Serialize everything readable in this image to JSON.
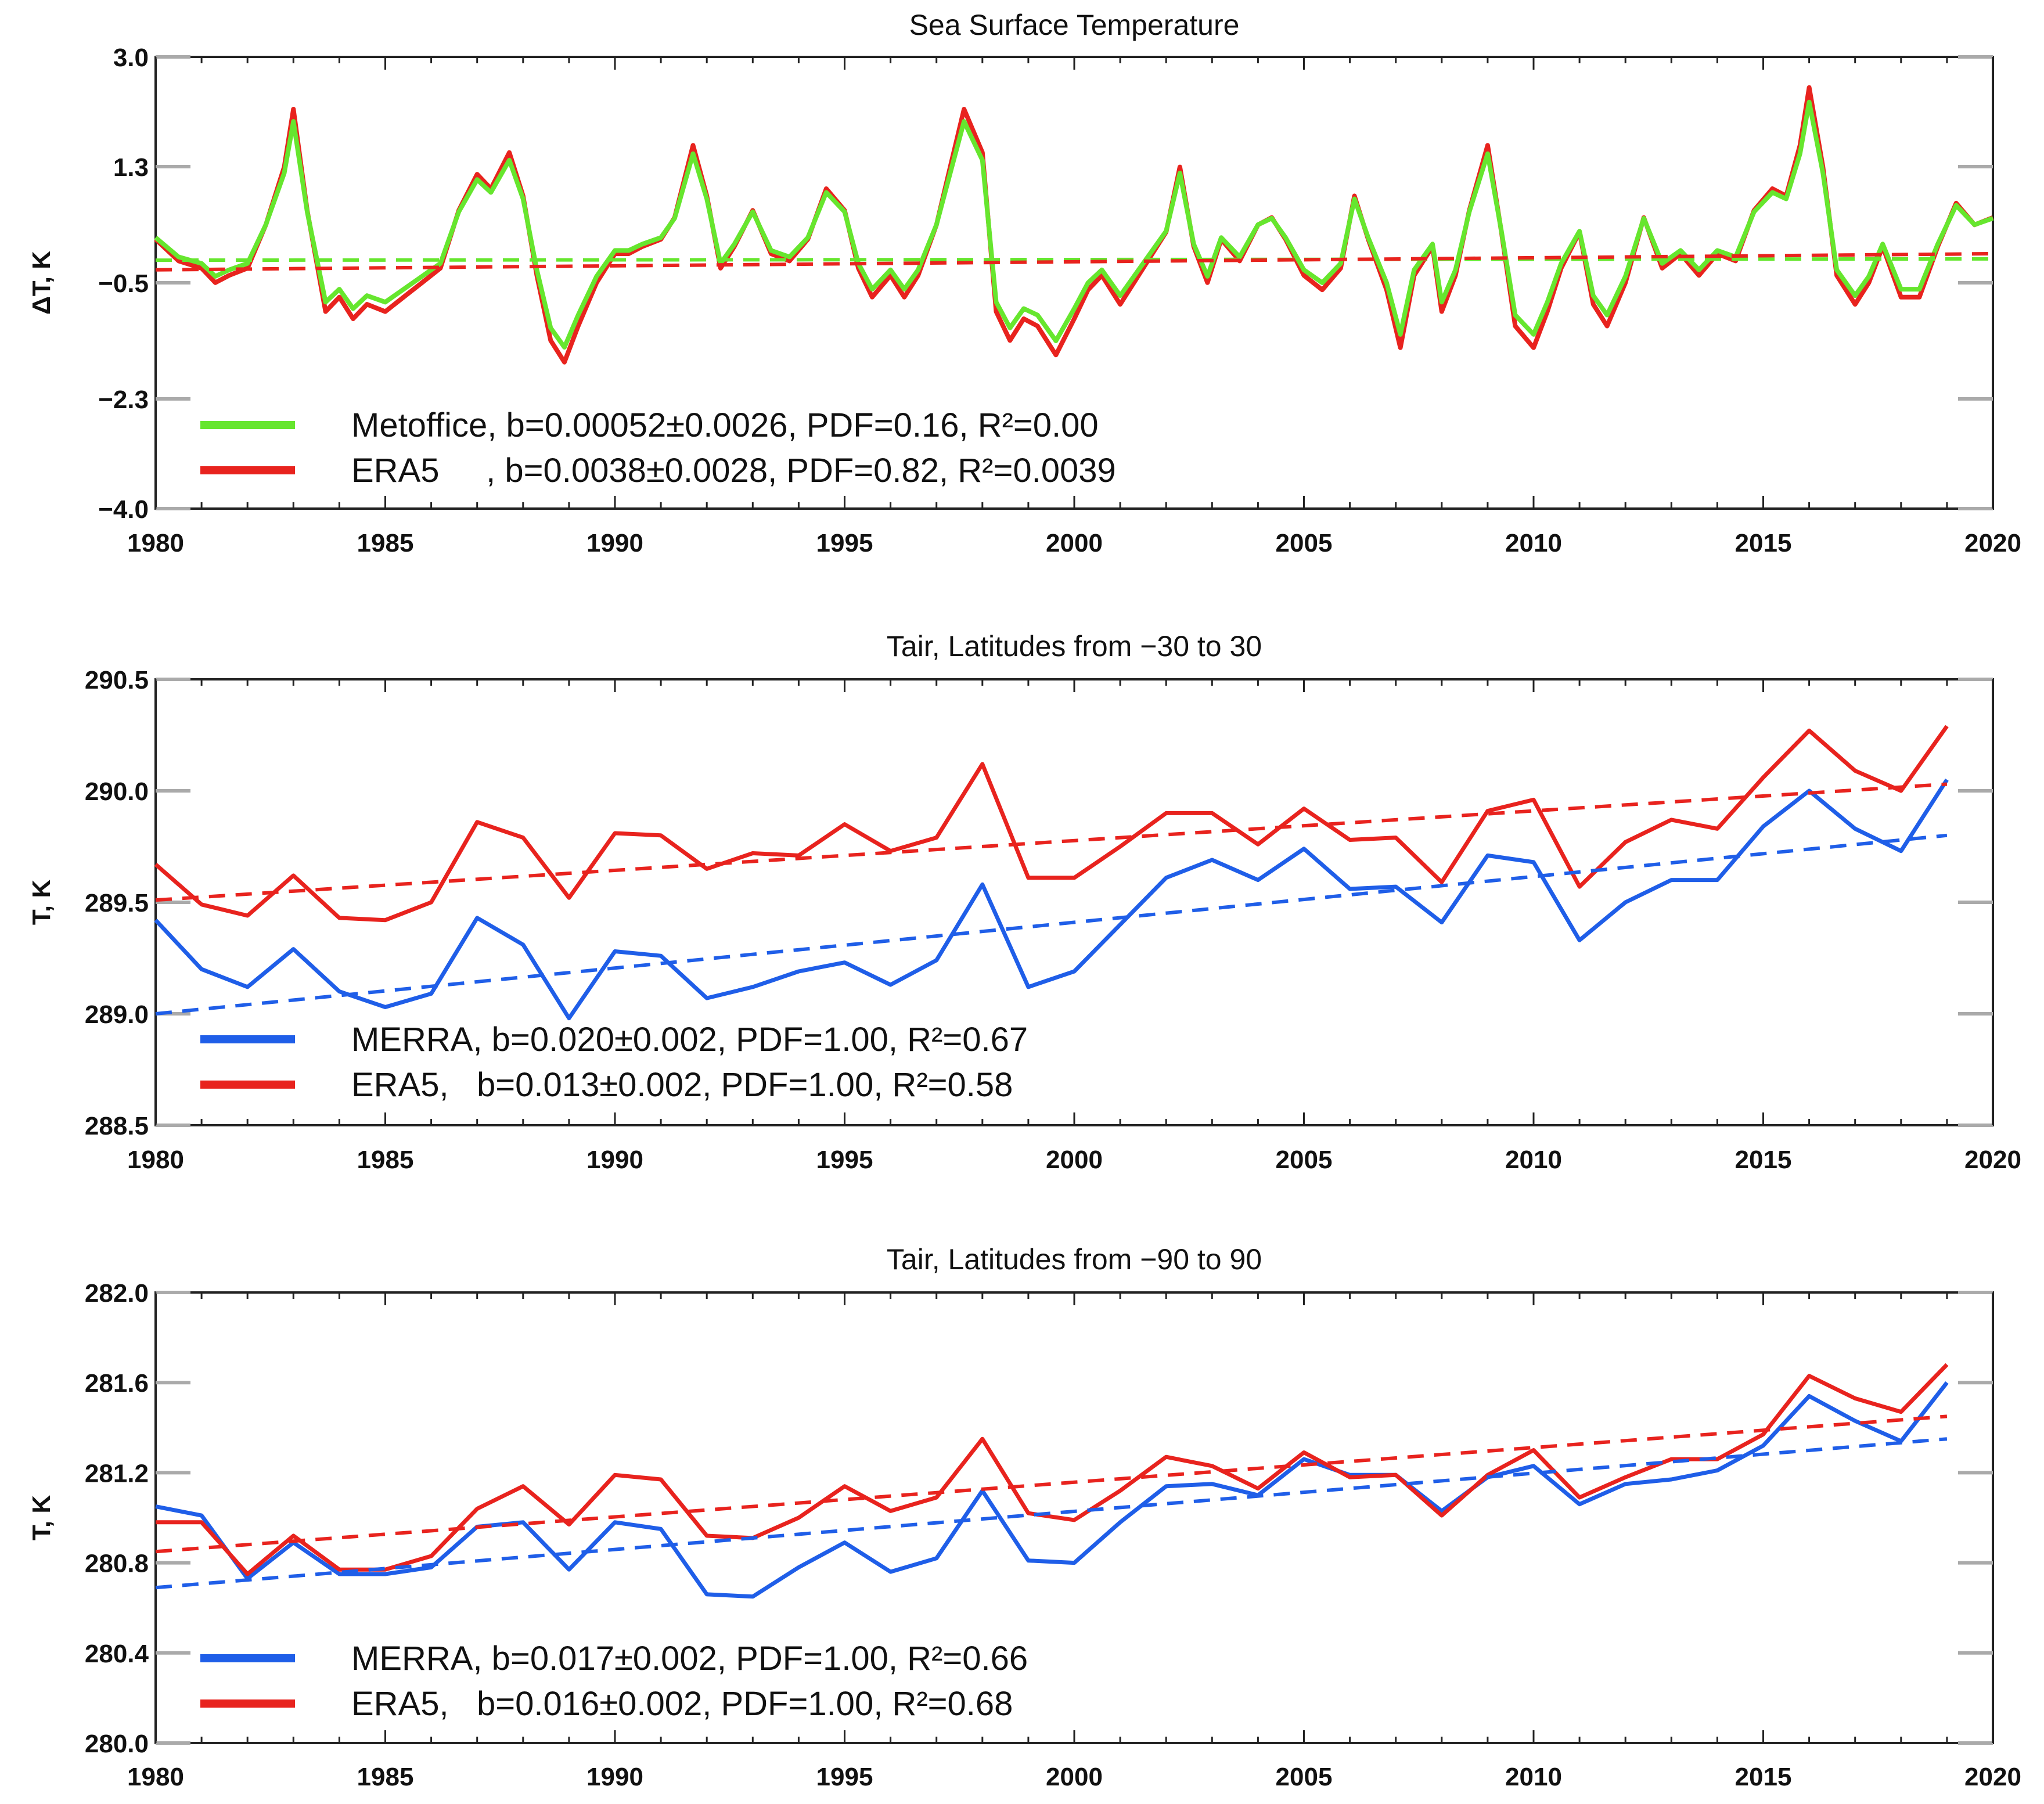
{
  "chart_data": [
    {
      "type": "line",
      "title": "Sea Surface Temperature",
      "xlabel": "",
      "ylabel": "ΔT, K",
      "xlim": [
        1980,
        2020
      ],
      "ylim": [
        -4.0,
        3.0
      ],
      "yticks": [
        3.0,
        1.3,
        -0.5,
        -2.3,
        -4.0
      ],
      "ytick_labels": [
        "3.0",
        "1.3",
        "−0.5",
        "−2.3",
        "−4.0"
      ],
      "xticks": [
        1980,
        1985,
        1990,
        1995,
        2000,
        2005,
        2010,
        2015,
        2020
      ],
      "xtick_labels": [
        "1980",
        "1985",
        "1990",
        "1995",
        "2000",
        "2005",
        "2010",
        "2015",
        "2020"
      ],
      "series": [
        {
          "name": "Metoffice",
          "color": "#66e62e",
          "legend": "Metoffice, b=0.00052±0.0026, PDF=0.16, R²=0.00",
          "trend": [
            -0.15,
            -0.13
          ],
          "x": [
            1980.0,
            1980.5,
            1981.0,
            1981.3,
            1981.6,
            1982.0,
            1982.4,
            1982.8,
            1983.0,
            1983.3,
            1983.7,
            1984.0,
            1984.3,
            1984.6,
            1985.0,
            1985.4,
            1985.8,
            1986.2,
            1986.6,
            1987.0,
            1987.3,
            1987.7,
            1988.0,
            1988.3,
            1988.6,
            1988.9,
            1989.2,
            1989.6,
            1990.0,
            1990.3,
            1990.6,
            1991.0,
            1991.3,
            1991.7,
            1992.0,
            1992.3,
            1992.6,
            1993.0,
            1993.4,
            1993.8,
            1994.2,
            1994.6,
            1995.0,
            1995.3,
            1995.6,
            1996.0,
            1996.3,
            1996.6,
            1997.0,
            1997.3,
            1997.6,
            1998.0,
            1998.3,
            1998.6,
            1998.9,
            1999.2,
            1999.6,
            2000.0,
            2000.3,
            2000.6,
            2001.0,
            2001.3,
            2001.6,
            2002.0,
            2002.3,
            2002.6,
            2002.9,
            2003.2,
            2003.6,
            2004.0,
            2004.3,
            2004.6,
            2005.0,
            2005.4,
            2005.8,
            2006.1,
            2006.4,
            2006.8,
            2007.1,
            2007.4,
            2007.8,
            2008.0,
            2008.3,
            2008.6,
            2009.0,
            2009.3,
            2009.6,
            2010.0,
            2010.3,
            2010.6,
            2011.0,
            2011.3,
            2011.6,
            2012.0,
            2012.4,
            2012.8,
            2013.2,
            2013.6,
            2014.0,
            2014.4,
            2014.8,
            2015.2,
            2015.5,
            2015.8,
            2016.0,
            2016.3,
            2016.6,
            2017.0,
            2017.3,
            2017.6,
            2018.0,
            2018.4,
            2018.8,
            2019.2,
            2019.6,
            2020.0
          ],
          "y": [
            0.2,
            -0.1,
            -0.2,
            -0.4,
            -0.3,
            -0.2,
            0.4,
            1.2,
            2.0,
            0.6,
            -0.8,
            -0.6,
            -0.9,
            -0.7,
            -0.8,
            -0.6,
            -0.4,
            -0.2,
            0.6,
            1.1,
            0.9,
            1.4,
            0.8,
            -0.3,
            -1.2,
            -1.5,
            -1.0,
            -0.4,
            0.0,
            0.0,
            0.1,
            0.2,
            0.5,
            1.5,
            0.8,
            -0.2,
            0.1,
            0.6,
            0.0,
            -0.1,
            0.2,
            0.9,
            0.6,
            -0.2,
            -0.6,
            -0.3,
            -0.6,
            -0.3,
            0.4,
            1.2,
            2.0,
            1.4,
            -0.8,
            -1.2,
            -0.9,
            -1.0,
            -1.4,
            -0.9,
            -0.5,
            -0.3,
            -0.7,
            -0.4,
            -0.1,
            0.3,
            1.2,
            0.1,
            -0.4,
            0.2,
            -0.1,
            0.4,
            0.5,
            0.2,
            -0.3,
            -0.5,
            -0.2,
            0.8,
            0.2,
            -0.5,
            -1.3,
            -0.3,
            0.1,
            -0.8,
            -0.3,
            0.6,
            1.5,
            0.3,
            -1.0,
            -1.3,
            -0.8,
            -0.2,
            0.3,
            -0.7,
            -1.0,
            -0.4,
            0.5,
            -0.2,
            0.0,
            -0.3,
            0.0,
            -0.1,
            0.6,
            0.9,
            0.8,
            1.5,
            2.3,
            1.2,
            -0.3,
            -0.7,
            -0.4,
            0.1,
            -0.6,
            -0.6,
            0.1,
            0.7,
            0.4,
            0.5
          ],
          "y_reading_note": ""
        },
        {
          "name": "ERA5",
          "color": "#e8231e",
          "legend": "ERA5     , b=0.0038±0.0028, PDF=0.82, R²=0.0039",
          "trend": [
            -0.3,
            -0.05
          ]
        }
      ]
    },
    {
      "type": "line",
      "title": "Tair, Latitudes from −30 to 30",
      "xlabel": "",
      "ylabel": "T, K",
      "xlim": [
        1980,
        2020
      ],
      "ylim": [
        288.5,
        290.5
      ],
      "yticks": [
        290.5,
        290.0,
        289.5,
        289.0,
        288.5
      ],
      "ytick_labels": [
        "290.5",
        "290.0",
        "289.5",
        "289.0",
        "288.5"
      ],
      "xticks": [
        1980,
        1985,
        1990,
        1995,
        2000,
        2005,
        2010,
        2015,
        2020
      ],
      "xtick_labels": [
        "1980",
        "1985",
        "1990",
        "1995",
        "2000",
        "2005",
        "2010",
        "2015",
        "2020"
      ],
      "x": [
        1980,
        1981,
        1982,
        1983,
        1984,
        1985,
        1986,
        1987,
        1988,
        1989,
        1990,
        1991,
        1992,
        1993,
        1994,
        1995,
        1996,
        1997,
        1998,
        1999,
        2000,
        2001,
        2002,
        2003,
        2004,
        2005,
        2006,
        2007,
        2008,
        2009,
        2010,
        2011,
        2012,
        2013,
        2014,
        2015,
        2016,
        2017,
        2018,
        2019
      ],
      "series": [
        {
          "name": "MERRA",
          "color": "#1f5ee8",
          "legend": "MERRA, b=0.020±0.002, PDF=1.00, R²=0.67",
          "values": [
            289.42,
            289.2,
            289.12,
            289.29,
            289.1,
            289.03,
            289.09,
            289.43,
            289.31,
            288.98,
            289.28,
            289.26,
            289.07,
            289.12,
            289.19,
            289.23,
            289.13,
            289.24,
            289.58,
            289.12,
            289.19,
            289.4,
            289.61,
            289.69,
            289.6,
            289.74,
            289.56,
            289.57,
            289.41,
            289.71,
            289.68,
            289.33,
            289.5,
            289.6,
            289.6,
            289.84,
            290.0,
            289.83,
            289.73,
            290.05
          ],
          "trend": [
            289.0,
            289.8
          ]
        },
        {
          "name": "ERA5",
          "color": "#e8231e",
          "legend": "ERA5,   b=0.013±0.002, PDF=1.00, R²=0.58",
          "values": [
            289.67,
            289.49,
            289.44,
            289.62,
            289.43,
            289.42,
            289.5,
            289.86,
            289.79,
            289.52,
            289.81,
            289.8,
            289.65,
            289.72,
            289.71,
            289.85,
            289.73,
            289.79,
            290.12,
            289.61,
            289.61,
            289.75,
            289.9,
            289.9,
            289.76,
            289.92,
            289.78,
            289.79,
            289.59,
            289.91,
            289.96,
            289.57,
            289.77,
            289.87,
            289.83,
            290.06,
            290.27,
            290.09,
            290.0,
            290.29
          ],
          "trend": [
            289.51,
            290.03
          ]
        }
      ]
    },
    {
      "type": "line",
      "title": "Tair, Latitudes from −90 to 90",
      "xlabel": "",
      "ylabel": "T, K",
      "xlim": [
        1980,
        2020
      ],
      "ylim": [
        280.0,
        282.0
      ],
      "yticks": [
        282.0,
        281.6,
        281.2,
        280.8,
        280.4,
        280.0
      ],
      "ytick_labels": [
        "282.0",
        "281.6",
        "281.2",
        "280.8",
        "280.4",
        "280.0"
      ],
      "xticks": [
        1980,
        1985,
        1990,
        1995,
        2000,
        2005,
        2010,
        2015,
        2020
      ],
      "xtick_labels": [
        "1980",
        "1985",
        "1990",
        "1995",
        "2000",
        "2005",
        "2010",
        "2015",
        "2020"
      ],
      "x": [
        1980,
        1981,
        1982,
        1983,
        1984,
        1985,
        1986,
        1987,
        1988,
        1989,
        1990,
        1991,
        1992,
        1993,
        1994,
        1995,
        1996,
        1997,
        1998,
        1999,
        2000,
        2001,
        2002,
        2003,
        2004,
        2005,
        2006,
        2007,
        2008,
        2009,
        2010,
        2011,
        2012,
        2013,
        2014,
        2015,
        2016,
        2017,
        2018,
        2019
      ],
      "series": [
        {
          "name": "MERRA",
          "color": "#1f5ee8",
          "legend": "MERRA, b=0.017±0.002, PDF=1.00, R²=0.66",
          "values": [
            281.05,
            281.01,
            280.73,
            280.89,
            280.75,
            280.75,
            280.78,
            280.96,
            280.98,
            280.77,
            280.98,
            280.95,
            280.66,
            280.65,
            280.78,
            280.89,
            280.76,
            280.82,
            281.12,
            280.81,
            280.8,
            280.98,
            281.14,
            281.15,
            281.1,
            281.26,
            281.19,
            281.19,
            281.03,
            281.18,
            281.23,
            281.06,
            281.15,
            281.17,
            281.21,
            281.32,
            281.54,
            281.43,
            281.34,
            281.6
          ],
          "trend": [
            280.69,
            281.35
          ]
        },
        {
          "name": "ERA5",
          "color": "#e8231e",
          "legend": "ERA5,   b=0.016±0.002, PDF=1.00, R²=0.68",
          "values": [
            280.98,
            280.98,
            280.75,
            280.92,
            280.77,
            280.77,
            280.83,
            281.04,
            281.14,
            280.97,
            281.19,
            281.17,
            280.92,
            280.91,
            281.0,
            281.14,
            281.03,
            281.09,
            281.35,
            281.02,
            280.99,
            281.12,
            281.27,
            281.23,
            281.13,
            281.29,
            281.18,
            281.19,
            281.01,
            281.19,
            281.3,
            281.09,
            281.18,
            281.26,
            281.26,
            281.37,
            281.63,
            281.53,
            281.47,
            281.68
          ],
          "trend": [
            280.85,
            281.45
          ]
        }
      ]
    }
  ]
}
